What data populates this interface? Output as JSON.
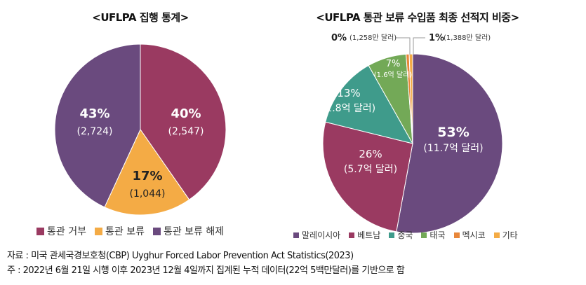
{
  "chart_data": [
    {
      "type": "pie",
      "title": "<UFLPA 집행 통계>",
      "slices": [
        {
          "name": "통관 거부",
          "percent": 40,
          "count_label": "(2,547)",
          "value": 2547,
          "color": "#9a3a61"
        },
        {
          "name": "통관 보류",
          "percent": 17,
          "count_label": "(1,044)",
          "value": 1044,
          "color": "#f4ab45"
        },
        {
          "name": "통관 보류 해제",
          "percent": 43,
          "count_label": "(2,724)",
          "value": 2724,
          "color": "#6a4a7e"
        }
      ],
      "legend_position": "bottom"
    },
    {
      "type": "pie",
      "title": "<UFLPA 통관 보류 수입품 최종 선적지 비중>",
      "slices": [
        {
          "name": "말레이시아",
          "percent": 53,
          "pct_label": "53%",
          "amount_label": "(11.7억 달러)",
          "value": 53,
          "color": "#6a4a7e"
        },
        {
          "name": "베트남",
          "percent": 26,
          "pct_label": "26%",
          "amount_label": "(5.7억 달러)",
          "value": 26,
          "color": "#9a3a61"
        },
        {
          "name": "중국",
          "percent": 13,
          "pct_label": "13%",
          "amount_label": "(2.8억 달러)",
          "value": 13,
          "color": "#3f9b8b"
        },
        {
          "name": "태국",
          "percent": 7,
          "pct_label": "7%",
          "amount_label": "(1.6억 달러)",
          "value": 7,
          "color": "#73a957"
        },
        {
          "name": "멕시코",
          "percent": 0,
          "pct_label": "0%",
          "amount_label": "(1,258만 달러)",
          "value": 0.56,
          "color": "#e8873a"
        },
        {
          "name": "기타",
          "percent": 1,
          "pct_label": "1%",
          "amount_label": "(1,388만 달러)",
          "value": 0.62,
          "color": "#f4ab45"
        }
      ],
      "legend_position": "bottom"
    }
  ],
  "notes": {
    "source": "자료 : 미국 관세국경보호청(CBP) Uyghur Forced Labor Prevention Act Statistics(2023)",
    "note": "주 : 2022년 6월 21일 시행 이후 2023년 12월 4일까지 집계된 누적 데이터(22억 5백만달러)를 기반으로 함"
  }
}
